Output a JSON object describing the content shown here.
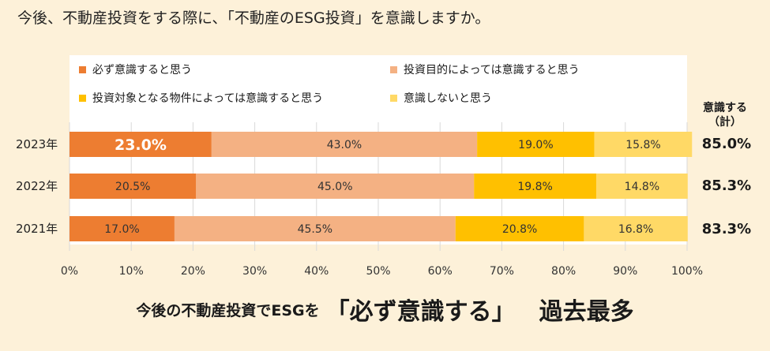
{
  "header": {
    "title": "今後、不動産投資をする際に、「不動産のESG投資」を意識しますか。"
  },
  "chart_data": {
    "type": "bar",
    "orientation": "horizontal",
    "stacked": true,
    "categories": [
      "2023年",
      "2022年",
      "2021年"
    ],
    "series": [
      {
        "name": "必ず意識すると思う",
        "color": "#ed7d31",
        "values": [
          23.0,
          20.5,
          17.0
        ]
      },
      {
        "name": "投資目的によっては意識すると思う",
        "color": "#f4b183",
        "values": [
          43.0,
          45.0,
          45.5
        ]
      },
      {
        "name": "投資対象となる物件によっては意識すると思う",
        "color": "#ffc000",
        "values": [
          19.0,
          19.8,
          20.8
        ]
      },
      {
        "name": "意識しないと思う",
        "color": "#ffd966",
        "values": [
          15.8,
          14.8,
          16.8
        ]
      }
    ],
    "data_labels": [
      [
        "23.0%",
        "43.0%",
        "19.0%",
        "15.8%"
      ],
      [
        "20.5%",
        "45.0%",
        "19.8%",
        "14.8%"
      ],
      [
        "17.0%",
        "45.5%",
        "20.8%",
        "16.8%"
      ]
    ],
    "xlim": [
      0,
      100
    ],
    "xticks": [
      "0%",
      "10%",
      "20%",
      "30%",
      "40%",
      "50%",
      "60%",
      "70%",
      "80%",
      "90%",
      "100%"
    ],
    "grid": true,
    "legend_position": "top"
  },
  "totals": {
    "header_line1": "意識する",
    "header_line2": "（計）",
    "values": [
      "85.0%",
      "85.3%",
      "83.3%"
    ]
  },
  "footer": {
    "lead": "今後の不動産投資でESGを",
    "emphasis": "「必ず意識する」",
    "tail": "過去最多"
  }
}
